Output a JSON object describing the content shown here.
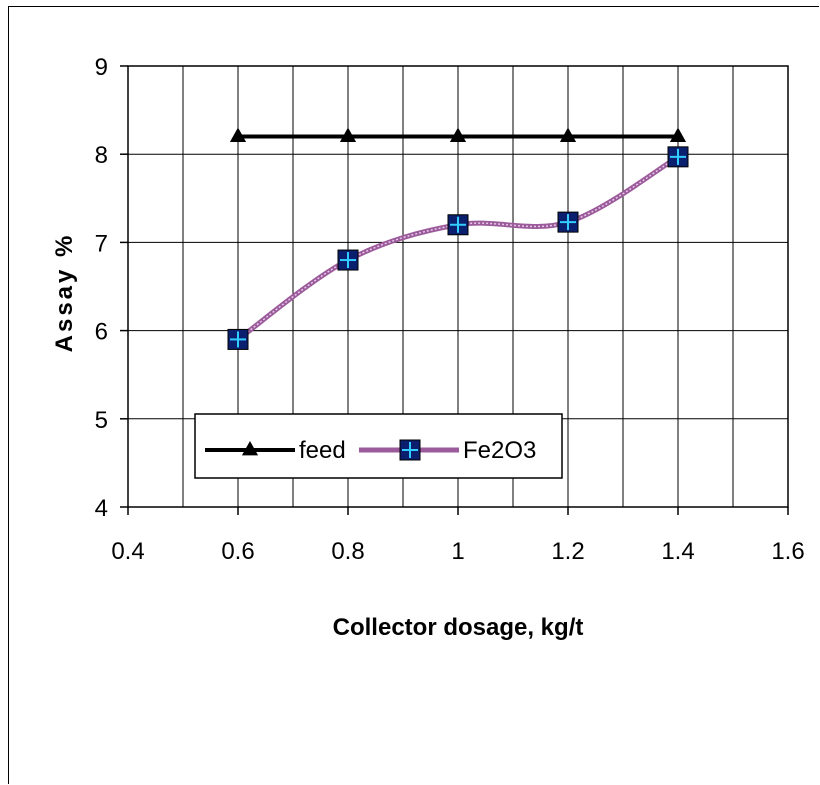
{
  "chart_data": {
    "type": "line",
    "xlabel": "Collector dosage, kg/t",
    "ylabel": "Assay %",
    "xlim": [
      0.4,
      1.6
    ],
    "ylim": [
      4,
      9
    ],
    "x_ticks": [
      "0.4",
      "0.6",
      "0.8",
      "1",
      "1.2",
      "1.4",
      "1.6"
    ],
    "y_ticks": [
      "4",
      "5",
      "6",
      "7",
      "8",
      "9"
    ],
    "x_tick_values": [
      0.4,
      0.6,
      0.8,
      1.0,
      1.2,
      1.4,
      1.6
    ],
    "y_tick_values": [
      4,
      5,
      6,
      7,
      8,
      9
    ],
    "x_minor_grid": [
      0.5,
      0.7,
      0.9,
      1.1,
      1.3,
      1.5
    ],
    "grid": true,
    "legend_position": "bottom-left inside plot",
    "series": [
      {
        "name": "feed",
        "x": [
          0.6,
          0.8,
          1.0,
          1.2,
          1.4
        ],
        "values": [
          8.2,
          8.2,
          8.2,
          8.2,
          8.2
        ],
        "color": "#000000",
        "marker": "triangle"
      },
      {
        "name": "Fe2O3",
        "x": [
          0.6,
          0.8,
          1.0,
          1.2,
          1.4
        ],
        "values": [
          5.9,
          6.8,
          7.2,
          7.23,
          7.97
        ],
        "color": "#9b5b9b",
        "marker": "square-plus",
        "marker_fill": "#0a1f6e",
        "marker_cross": "#33ccff",
        "smoothed": true
      }
    ]
  }
}
